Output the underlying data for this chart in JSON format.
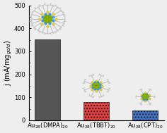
{
  "categories": [
    "Au$_{28}$(DMPA)$_{20}$",
    "Au$_{28}$(TBBT)$_{20}$",
    "Au$_{28}$(CPT)$_{20}$"
  ],
  "values": [
    352,
    78,
    42
  ],
  "bar_colors": [
    "#555555",
    "#e84040",
    "#4472c4"
  ],
  "bar_hatches": [
    null,
    "....",
    "...."
  ],
  "ylabel": "j (mA/mg$_{gold}$)",
  "ylim": [
    0,
    500
  ],
  "yticks": [
    0,
    100,
    200,
    300,
    400,
    500
  ],
  "background_color": "#eeeeee",
  "tick_fontsize": 6,
  "label_fontsize": 7,
  "cluster_colors": {
    "core": "#8db600",
    "core_dark": "#5a7a00",
    "S": "#f0d020",
    "blue": "#3399ff",
    "stick": "#aaaaaa",
    "end": "#cccccc"
  }
}
